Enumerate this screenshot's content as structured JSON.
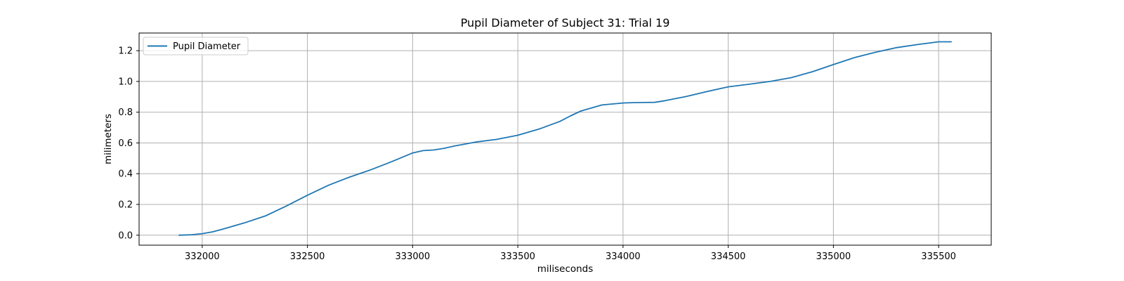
{
  "chart_data": {
    "type": "line",
    "title": "Pupil Diameter of Subject 31: Trial 19",
    "xlabel": "miliseconds",
    "ylabel": "milimeters",
    "xlim": [
      331700,
      335750
    ],
    "ylim": [
      -0.065,
      1.315
    ],
    "xticks": [
      332000,
      332500,
      333000,
      333500,
      334000,
      334500,
      335000,
      335500
    ],
    "yticks": [
      0.0,
      0.2,
      0.4,
      0.6,
      0.8,
      1.0,
      1.2
    ],
    "xtick_labels": [
      "332000",
      "332500",
      "333000",
      "333500",
      "334000",
      "334500",
      "335000",
      "335500"
    ],
    "ytick_labels": [
      "0.0",
      "0.2",
      "0.4",
      "0.6",
      "0.8",
      "1.0",
      "1.2"
    ],
    "grid": true,
    "legend": {
      "position": "upper-left",
      "entries": [
        "Pupil Diameter"
      ]
    },
    "colors": {
      "line": "#1f77b4",
      "grid": "#b0b0b0"
    },
    "series": [
      {
        "name": "Pupil Diameter",
        "x": [
          331890,
          331950,
          332000,
          332050,
          332100,
          332200,
          332300,
          332400,
          332500,
          332600,
          332700,
          332800,
          332900,
          333000,
          333050,
          333100,
          333150,
          333200,
          333300,
          333400,
          333500,
          333600,
          333700,
          333750,
          333800,
          333900,
          334000,
          334050,
          334100,
          334150,
          334200,
          334300,
          334400,
          334500,
          334600,
          334700,
          334800,
          334900,
          335000,
          335100,
          335200,
          335300,
          335400,
          335500,
          335560
        ],
        "y": [
          0.0,
          0.003,
          0.01,
          0.022,
          0.04,
          0.08,
          0.125,
          0.19,
          0.26,
          0.325,
          0.378,
          0.425,
          0.478,
          0.535,
          0.55,
          0.554,
          0.565,
          0.58,
          0.606,
          0.623,
          0.65,
          0.69,
          0.74,
          0.776,
          0.808,
          0.847,
          0.86,
          0.862,
          0.863,
          0.864,
          0.875,
          0.902,
          0.935,
          0.965,
          0.982,
          1.0,
          1.025,
          1.063,
          1.11,
          1.155,
          1.19,
          1.22,
          1.24,
          1.258,
          1.258
        ]
      }
    ]
  }
}
